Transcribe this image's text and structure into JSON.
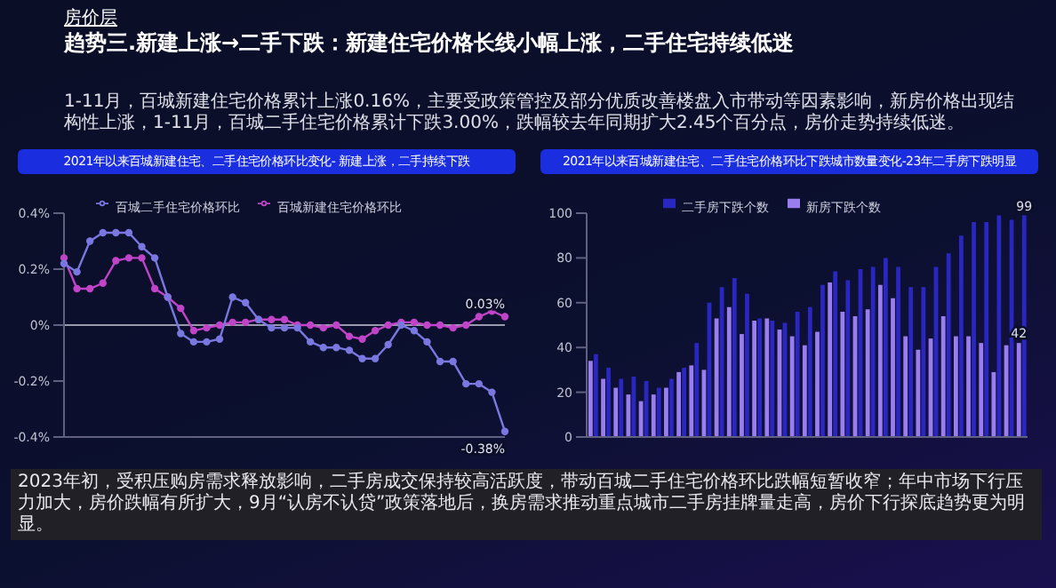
{
  "chart_data": [
    {
      "type": "line",
      "title": "2021年以来百城新建住宅、二手住宅价格环比变化- 新建上涨，二手持续下跌",
      "annotations": [
        "房价层",
        "趋势三.新建上涨→二手下跌：新建住宅价格长线小幅上涨，二手住宅持续低迷",
        "1-11月，百城新建住宅价格累计上涨0.16%，主要受政策管控及部分优质改善楼盘入市带动等因素影响，新房价格出现结构性上涨，1-11月，百城二手住宅价格累计下跌3.00%，跌幅较去年同期扩大2.45个百分点，房价走势持续低迷。"
      ],
      "categories": [
        null,
        null,
        null,
        null,
        null,
        null,
        null,
        null,
        null,
        null,
        null,
        null,
        null,
        null,
        null,
        null,
        null,
        null,
        null,
        null,
        null,
        null,
        null,
        null,
        null,
        null,
        null,
        null,
        null,
        null,
        null,
        null,
        null,
        null,
        null
      ],
      "series": [
        {
          "name": "百城新建住宅价格环比",
          "color": "#c044c8",
          "values": [
            0.24,
            0.13,
            0.13,
            0.15,
            0.23,
            0.24,
            0.24,
            0.13,
            0.1,
            0.06,
            -0.02,
            -0.01,
            0,
            0.01,
            0.01,
            0.02,
            0.02,
            0.02,
            0,
            0,
            -0.01,
            0,
            -0.04,
            -0.05,
            -0.02,
            0,
            0.01,
            0.01,
            0,
            0,
            -0.01,
            0,
            0.03,
            0.05,
            0.03
          ],
          "value_labels": [
            null,
            null,
            null,
            null,
            null,
            null,
            null,
            null,
            null,
            null,
            null,
            null,
            null,
            null,
            null,
            null,
            null,
            null,
            null,
            null,
            null,
            null,
            null,
            null,
            null,
            null,
            null,
            null,
            null,
            null,
            null,
            null,
            null,
            null,
            "0.03%"
          ]
        },
        {
          "name": "百城二手住宅价格环比",
          "color": "#7a78e0",
          "values": [
            0.22,
            0.19,
            0.3,
            0.33,
            0.33,
            0.33,
            0.28,
            0.24,
            0.1,
            -0.03,
            -0.06,
            -0.06,
            -0.05,
            0.1,
            0.08,
            0.02,
            -0.01,
            -0.01,
            -0.01,
            -0.06,
            -0.08,
            -0.08,
            -0.09,
            -0.12,
            -0.12,
            -0.07,
            0,
            -0.02,
            -0.06,
            -0.13,
            -0.13,
            -0.21,
            -0.21,
            -0.24,
            -0.38
          ],
          "value_labels": [
            null,
            null,
            null,
            null,
            null,
            null,
            null,
            null,
            null,
            null,
            null,
            null,
            null,
            null,
            null,
            null,
            null,
            null,
            null,
            null,
            null,
            null,
            null,
            null,
            null,
            null,
            null,
            null,
            null,
            null,
            null,
            null,
            null,
            null,
            "-0.38%"
          ]
        }
      ],
      "ylim": [
        -0.4,
        0.4
      ],
      "yticks": [
        {
          "value": -0.4,
          "label": "-0.4%"
        },
        {
          "value": -0.2,
          "label": "-0.2%"
        },
        {
          "value": 0,
          "label": "0%"
        },
        {
          "value": 0.2,
          "label": "0.2%"
        },
        {
          "value": 0.4,
          "label": "0.4%"
        }
      ],
      "ref_lines": [
        {
          "axis": "y",
          "value": 0,
          "color": "#c8c8d8"
        }
      ],
      "marker": "circle",
      "legend": "top",
      "grid": false
    },
    {
      "type": "bar",
      "title": "2021年以来百城新建住宅、二手住宅价格环比下跌城市数量变化-23年二手房下跌明显",
      "annotations": [
        "2023年初，受积压购房需求释放影响，二手房成交保持较高活跃度，带动百城二手住宅价格环比跌幅短暂收窄；年中市场下行压力加大，房价跌幅有所扩大，9月“认房不认贷”政策落地后，换房需求推动重点城市二手房挂牌量走高，房价下行探底趋势更为明显。"
      ],
      "categories": [
        null,
        null,
        null,
        null,
        null,
        null,
        null,
        null,
        null,
        null,
        null,
        null,
        null,
        null,
        null,
        null,
        null,
        null,
        null,
        null,
        null,
        null,
        null,
        null,
        null,
        null,
        null,
        null,
        null,
        null,
        null,
        null,
        null,
        null,
        null
      ],
      "series": [
        {
          "name": "新房下跌个数",
          "color": "#9a7ef0",
          "values": [
            34,
            26,
            22,
            19,
            16,
            19,
            22,
            29,
            32,
            30,
            53,
            58,
            46,
            52,
            53,
            48,
            45,
            41,
            47,
            69,
            56,
            54,
            57,
            68,
            62,
            45,
            39,
            44,
            54,
            45,
            45,
            42,
            29,
            41,
            42
          ],
          "value_labels": [
            null,
            null,
            null,
            null,
            null,
            null,
            null,
            null,
            null,
            null,
            null,
            null,
            null,
            null,
            null,
            null,
            null,
            null,
            null,
            null,
            null,
            null,
            null,
            null,
            null,
            null,
            null,
            null,
            null,
            null,
            null,
            null,
            null,
            null,
            "42"
          ]
        },
        {
          "name": "二手房下跌个数",
          "color": "#2a26c0",
          "values": [
            37,
            31,
            26,
            27,
            25,
            22,
            26,
            31,
            42,
            60,
            67,
            71,
            64,
            53,
            52,
            51,
            56,
            58,
            68,
            74,
            70,
            75,
            76,
            80,
            76,
            67,
            67,
            76,
            82,
            90,
            96,
            96,
            99,
            97,
            99
          ],
          "value_labels": [
            null,
            null,
            null,
            null,
            null,
            null,
            null,
            null,
            null,
            null,
            null,
            null,
            null,
            null,
            null,
            null,
            null,
            null,
            null,
            null,
            null,
            null,
            null,
            null,
            null,
            null,
            null,
            null,
            null,
            null,
            null,
            null,
            null,
            null,
            "99"
          ]
        }
      ],
      "ylim": [
        0,
        100
      ],
      "yticks": [
        0,
        20,
        40,
        60,
        80,
        100
      ],
      "legend": "top",
      "grid": false
    }
  ]
}
